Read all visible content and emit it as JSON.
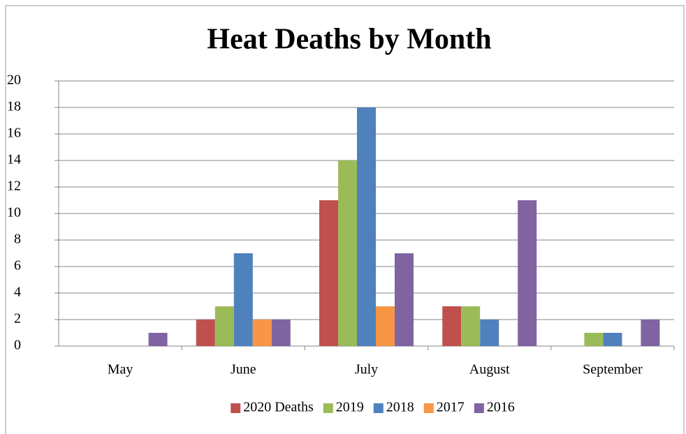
{
  "chart_data": {
    "type": "bar",
    "title": "Heat Deaths by Month",
    "categories": [
      "May",
      "June",
      "July",
      "August",
      "September"
    ],
    "series": [
      {
        "name": "2020 Deaths",
        "color": "#c0504d",
        "values": [
          0,
          2,
          11,
          3,
          0
        ]
      },
      {
        "name": "2019",
        "color": "#9bbb59",
        "values": [
          0,
          3,
          14,
          3,
          1
        ]
      },
      {
        "name": "2018",
        "color": "#4f81bd",
        "values": [
          0,
          7,
          18,
          2,
          1
        ]
      },
      {
        "name": "2017",
        "color": "#f79646",
        "values": [
          0,
          2,
          3,
          0,
          0
        ]
      },
      {
        "name": "2016",
        "color": "#8064a2",
        "values": [
          1,
          2,
          7,
          11,
          2
        ]
      }
    ],
    "ylim": [
      0,
      20
    ],
    "yticks": [
      0,
      2,
      4,
      6,
      8,
      10,
      12,
      14,
      16,
      18,
      20
    ],
    "grid": true,
    "legend": "bottom"
  }
}
